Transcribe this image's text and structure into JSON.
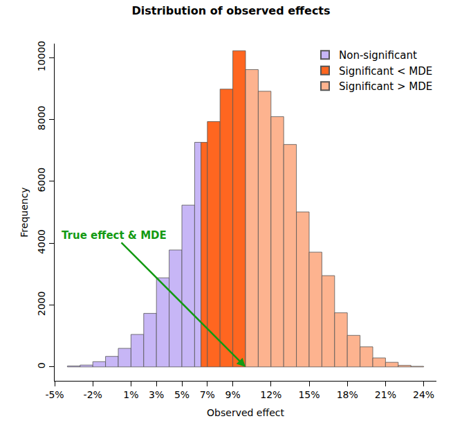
{
  "chart_data": {
    "type": "histogram",
    "title": "Distribution of observed effects",
    "x_label": "Observed effect",
    "y_label": "Frequency",
    "series": [
      {
        "name": "Non-significant",
        "color": "#c7b6f6",
        "bins": [
          -4,
          -3,
          -2,
          -1,
          0,
          1,
          2,
          3,
          4,
          5,
          6,
          6.5
        ],
        "values": [
          30,
          60,
          170,
          340,
          600,
          1050,
          1730,
          2880,
          3780,
          5230,
          7260
        ]
      },
      {
        "name": "Significant < MDE",
        "color": "#ff6620",
        "bins": [
          6.5,
          7,
          8,
          9,
          10
        ],
        "values": [
          7260,
          7930,
          8980,
          10220
        ]
      },
      {
        "name": "Significant > MDE",
        "color": "#fdb38f",
        "bins": [
          10,
          11,
          12,
          13,
          14,
          15,
          16,
          17,
          18,
          19,
          20,
          21,
          22,
          23,
          24
        ],
        "values": [
          9610,
          8910,
          8090,
          7190,
          5010,
          3710,
          2950,
          1750,
          1020,
          650,
          290,
          150,
          50,
          20
        ]
      }
    ],
    "xlim": [
      -5,
      25
    ],
    "xticks": [
      {
        "value": -5,
        "label": "-5%"
      },
      {
        "value": -2,
        "label": "-2%"
      },
      {
        "value": 1,
        "label": "1%"
      },
      {
        "value": 3,
        "label": "3%"
      },
      {
        "value": 5,
        "label": "5%"
      },
      {
        "value": 7,
        "label": "7%"
      },
      {
        "value": 9,
        "label": "9%"
      },
      {
        "value": 12,
        "label": "12%"
      },
      {
        "value": 15,
        "label": "15%"
      },
      {
        "value": 18,
        "label": "18%"
      },
      {
        "value": 21,
        "label": "21%"
      },
      {
        "value": 24,
        "label": "24%"
      }
    ],
    "ylim": [
      -450,
      10450
    ],
    "yticks": [
      0,
      2000,
      4000,
      6000,
      8000,
      10000
    ],
    "grid": false,
    "legend": "top right",
    "annotations": [
      {
        "text": "True effect & MDE",
        "x": 10,
        "y": 0,
        "color": "#139a13"
      }
    ]
  }
}
